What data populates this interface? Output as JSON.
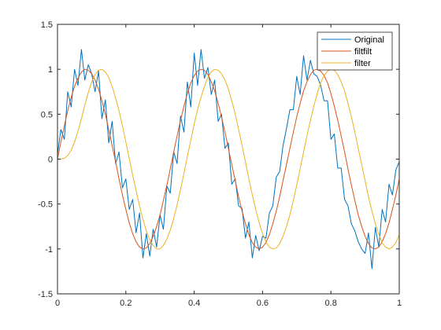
{
  "chart_data": {
    "type": "line",
    "title": "",
    "xlabel": "",
    "ylabel": "",
    "xlim": [
      0,
      1
    ],
    "ylim": [
      -1.5,
      1.5
    ],
    "x_ticks": [
      0,
      0.2,
      0.4,
      0.6,
      0.8,
      1
    ],
    "x_tick_labels": [
      "0",
      "0.2",
      "0.4",
      "0.6",
      "0.8",
      "1"
    ],
    "y_ticks": [
      -1.5,
      -1,
      -0.5,
      0,
      0.5,
      1,
      1.5
    ],
    "y_tick_labels": [
      "-1.5",
      "-1",
      "-0.5",
      "0",
      "0.5",
      "1",
      "1.5"
    ],
    "grid": false,
    "legend_position": "top-right",
    "series": [
      {
        "name": "Original",
        "color": "#0072BD",
        "x": [
          0.0,
          0.01,
          0.02,
          0.03,
          0.04,
          0.05,
          0.06,
          0.07,
          0.08,
          0.09,
          0.1,
          0.11,
          0.12,
          0.13,
          0.14,
          0.15,
          0.16,
          0.17,
          0.18,
          0.19,
          0.2,
          0.21,
          0.22,
          0.23,
          0.24,
          0.25,
          0.26,
          0.27,
          0.28,
          0.29,
          0.3,
          0.31,
          0.32,
          0.33,
          0.34,
          0.35,
          0.36,
          0.37,
          0.38,
          0.39,
          0.4,
          0.41,
          0.42,
          0.43,
          0.44,
          0.45,
          0.46,
          0.47,
          0.48,
          0.49,
          0.5,
          0.51,
          0.52,
          0.53,
          0.54,
          0.55,
          0.56,
          0.57,
          0.58,
          0.59,
          0.6,
          0.61,
          0.62,
          0.63,
          0.64,
          0.65,
          0.66,
          0.67,
          0.68,
          0.69,
          0.7,
          0.71,
          0.72,
          0.73,
          0.74,
          0.75,
          0.76,
          0.77,
          0.78,
          0.79,
          0.8,
          0.81,
          0.82,
          0.83,
          0.84,
          0.85,
          0.86,
          0.87,
          0.88,
          0.89,
          0.9,
          0.91,
          0.92,
          0.93,
          0.94,
          0.95,
          0.96,
          0.97,
          0.98,
          0.99,
          1.0
        ],
        "y": [
          0.05,
          0.33,
          0.22,
          0.75,
          0.58,
          1.0,
          0.82,
          1.22,
          0.88,
          1.05,
          0.95,
          0.75,
          0.98,
          0.45,
          0.66,
          0.18,
          0.42,
          -0.05,
          0.08,
          -0.32,
          -0.22,
          -0.56,
          -0.45,
          -0.82,
          -0.6,
          -1.1,
          -0.83,
          -1.08,
          -0.78,
          -0.98,
          -0.62,
          -0.78,
          -0.3,
          -0.38,
          0.08,
          -0.05,
          0.48,
          0.3,
          0.86,
          0.58,
          1.18,
          0.82,
          1.22,
          0.9,
          1.02,
          0.72,
          0.88,
          0.42,
          0.5,
          0.12,
          0.18,
          -0.28,
          -0.22,
          -0.52,
          -0.55,
          -0.88,
          -0.7,
          -1.1,
          -0.85,
          -1.02,
          -0.86,
          -0.88,
          -0.6,
          -0.52,
          -0.2,
          -0.14,
          0.15,
          0.34,
          0.55,
          0.55,
          0.92,
          0.72,
          1.15,
          0.88,
          1.1,
          0.95,
          0.92,
          0.82,
          0.65,
          0.65,
          0.22,
          0.28,
          -0.1,
          -0.1,
          -0.45,
          -0.52,
          -0.72,
          -0.8,
          -0.92,
          -1.0,
          -1.05,
          -0.82,
          -1.22,
          -0.76,
          -0.98,
          -0.56,
          -0.7,
          -0.28,
          -0.4,
          -0.12,
          -0.03
        ]
      },
      {
        "name": "filtfilt",
        "color": "#D95319",
        "x": [
          0.0,
          0.01,
          0.02,
          0.03,
          0.04,
          0.05,
          0.06,
          0.07,
          0.08,
          0.09,
          0.1,
          0.11,
          0.12,
          0.13,
          0.14,
          0.15,
          0.16,
          0.17,
          0.18,
          0.19,
          0.2,
          0.21,
          0.22,
          0.23,
          0.24,
          0.25,
          0.26,
          0.27,
          0.28,
          0.29,
          0.3,
          0.31,
          0.32,
          0.33,
          0.34,
          0.35,
          0.36,
          0.37,
          0.38,
          0.39,
          0.4,
          0.41,
          0.42,
          0.43,
          0.44,
          0.45,
          0.46,
          0.47,
          0.48,
          0.49,
          0.5,
          0.51,
          0.52,
          0.53,
          0.54,
          0.55,
          0.56,
          0.57,
          0.58,
          0.59,
          0.6,
          0.61,
          0.62,
          0.63,
          0.64,
          0.65,
          0.66,
          0.67,
          0.68,
          0.69,
          0.7,
          0.71,
          0.72,
          0.73,
          0.74,
          0.75,
          0.76,
          0.77,
          0.78,
          0.79,
          0.8,
          0.81,
          0.82,
          0.83,
          0.84,
          0.85,
          0.86,
          0.87,
          0.88,
          0.89,
          0.9,
          0.91,
          0.92,
          0.93,
          0.94,
          0.95,
          0.96,
          0.97,
          0.98,
          0.99,
          1.0
        ],
        "y": [
          0.0,
          0.19,
          0.37,
          0.54,
          0.69,
          0.81,
          0.9,
          0.97,
          1.0,
          0.99,
          0.95,
          0.88,
          0.78,
          0.65,
          0.5,
          0.33,
          0.15,
          -0.03,
          -0.22,
          -0.4,
          -0.56,
          -0.71,
          -0.83,
          -0.92,
          -0.98,
          -1.0,
          -0.99,
          -0.94,
          -0.86,
          -0.75,
          -0.62,
          -0.46,
          -0.29,
          -0.11,
          0.08,
          0.26,
          0.43,
          0.59,
          0.73,
          0.85,
          0.93,
          0.98,
          1.0,
          0.99,
          0.94,
          0.86,
          0.76,
          0.62,
          0.47,
          0.3,
          0.12,
          -0.06,
          -0.24,
          -0.42,
          -0.58,
          -0.72,
          -0.84,
          -0.93,
          -0.98,
          -1.0,
          -0.98,
          -0.93,
          -0.84,
          -0.72,
          -0.58,
          -0.42,
          -0.24,
          -0.06,
          0.12,
          0.3,
          0.47,
          0.62,
          0.76,
          0.86,
          0.94,
          0.99,
          1.0,
          0.98,
          0.93,
          0.85,
          0.73,
          0.59,
          0.43,
          0.26,
          0.08,
          -0.11,
          -0.29,
          -0.46,
          -0.62,
          -0.75,
          -0.86,
          -0.94,
          -0.99,
          -1.0,
          -0.98,
          -0.92,
          -0.83,
          -0.71,
          -0.56,
          -0.4,
          -0.22
        ]
      },
      {
        "name": "filter",
        "color": "#EDB120",
        "x": [
          0.0,
          0.01,
          0.02,
          0.03,
          0.04,
          0.05,
          0.06,
          0.07,
          0.08,
          0.09,
          0.1,
          0.11,
          0.12,
          0.13,
          0.14,
          0.15,
          0.16,
          0.17,
          0.18,
          0.19,
          0.2,
          0.21,
          0.22,
          0.23,
          0.24,
          0.25,
          0.26,
          0.27,
          0.28,
          0.29,
          0.3,
          0.31,
          0.32,
          0.33,
          0.34,
          0.35,
          0.36,
          0.37,
          0.38,
          0.39,
          0.4,
          0.41,
          0.42,
          0.43,
          0.44,
          0.45,
          0.46,
          0.47,
          0.48,
          0.49,
          0.5,
          0.51,
          0.52,
          0.53,
          0.54,
          0.55,
          0.56,
          0.57,
          0.58,
          0.59,
          0.6,
          0.61,
          0.62,
          0.63,
          0.64,
          0.65,
          0.66,
          0.67,
          0.68,
          0.69,
          0.7,
          0.71,
          0.72,
          0.73,
          0.74,
          0.75,
          0.76,
          0.77,
          0.78,
          0.79,
          0.8,
          0.81,
          0.82,
          0.83,
          0.84,
          0.85,
          0.86,
          0.87,
          0.88,
          0.89,
          0.9,
          0.91,
          0.92,
          0.93,
          0.94,
          0.95,
          0.96,
          0.97,
          0.98,
          0.99,
          1.0
        ],
        "y": [
          0.0,
          0.0,
          0.01,
          0.04,
          0.1,
          0.19,
          0.31,
          0.45,
          0.6,
          0.74,
          0.86,
          0.94,
          0.99,
          1.0,
          0.97,
          0.91,
          0.81,
          0.68,
          0.54,
          0.37,
          0.19,
          0.01,
          -0.18,
          -0.35,
          -0.52,
          -0.67,
          -0.8,
          -0.9,
          -0.96,
          -1.0,
          -1.0,
          -0.96,
          -0.89,
          -0.79,
          -0.66,
          -0.51,
          -0.34,
          -0.16,
          0.03,
          0.21,
          0.39,
          0.55,
          0.69,
          0.81,
          0.91,
          0.97,
          1.0,
          0.99,
          0.95,
          0.88,
          0.78,
          0.65,
          0.5,
          0.33,
          0.15,
          -0.03,
          -0.22,
          -0.4,
          -0.56,
          -0.71,
          -0.83,
          -0.92,
          -0.98,
          -1.0,
          -0.99,
          -0.94,
          -0.86,
          -0.75,
          -0.62,
          -0.46,
          -0.29,
          -0.11,
          0.08,
          0.26,
          0.43,
          0.59,
          0.73,
          0.85,
          0.93,
          0.98,
          1.0,
          0.99,
          0.94,
          0.86,
          0.76,
          0.62,
          0.47,
          0.3,
          0.12,
          -0.06,
          -0.24,
          -0.42,
          -0.58,
          -0.72,
          -0.84,
          -0.93,
          -0.98,
          -1.0,
          -0.98,
          -0.93,
          -0.84
        ]
      }
    ]
  }
}
